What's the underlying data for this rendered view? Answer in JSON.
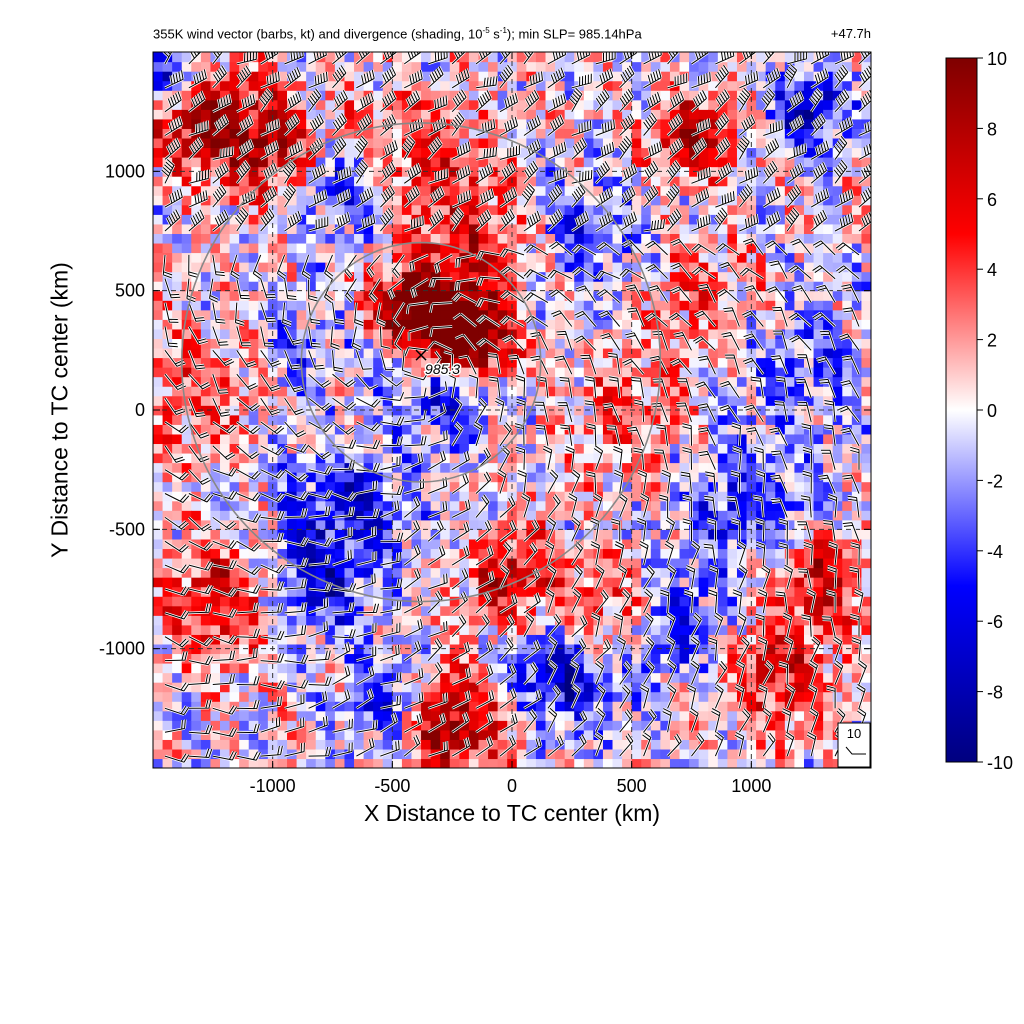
{
  "header": {
    "title_prefix": "355K wind vector (barbs, kt) and divergence (shading, 10",
    "title_exp1": "-5",
    "title_mid": " s",
    "title_exp2": "-1",
    "title_suffix": "); min SLP= 985.14hPa",
    "forecast_hour": "+47.7h"
  },
  "chart_data": {
    "type": "heatmap",
    "xlabel": "X Distance to TC center (km)",
    "ylabel": "Y Distance to TC center (km)",
    "xlim": [
      -1500,
      1500
    ],
    "ylim": [
      -1500,
      1500
    ],
    "x_ticks": [
      -1000,
      -500,
      0,
      500,
      1000
    ],
    "y_ticks": [
      -1000,
      -500,
      0,
      500,
      1000
    ],
    "x_tick_labels": [
      "-1000",
      "-500",
      "0",
      "500",
      "1000"
    ],
    "y_tick_labels": [
      "-1000",
      "-500",
      "0",
      "500",
      "1000"
    ],
    "grid": true,
    "grid_style": "dashed",
    "colorbar": {
      "min": -10,
      "max": 10,
      "ticks": [
        10,
        8,
        6,
        4,
        2,
        0,
        -2,
        -4,
        -6,
        -8,
        -10
      ],
      "tick_labels": [
        "10",
        "8",
        "6",
        "4",
        "2",
        "0",
        "-2",
        "-4",
        "-6",
        "-8",
        "-10"
      ],
      "colormap": [
        "#00007f",
        "#0000ff",
        "#ffffff",
        "#ff0000",
        "#7f0000"
      ]
    },
    "center_marker": {
      "x": -380,
      "y": 230,
      "label": "985.3"
    },
    "range_rings_km": [
      500,
      1000
    ],
    "ring_center": {
      "x": -380,
      "y": 200
    },
    "reference_barb": {
      "label": "10"
    },
    "divergence_features": [
      {
        "x": -300,
        "y": 380,
        "value": 10,
        "spread": 180
      },
      {
        "x": -200,
        "y": 300,
        "value": 9,
        "spread": 120
      },
      {
        "x": -450,
        "y": 420,
        "value": 6,
        "spread": 100
      },
      {
        "x": -250,
        "y": 70,
        "value": -8,
        "spread": 120
      },
      {
        "x": -480,
        "y": 230,
        "value": -6,
        "spread": 90
      },
      {
        "x": -1300,
        "y": 1250,
        "value": 9,
        "spread": 160
      },
      {
        "x": -1000,
        "y": 1100,
        "value": 7,
        "spread": 160
      },
      {
        "x": -700,
        "y": 950,
        "value": -6,
        "spread": 140
      },
      {
        "x": -1400,
        "y": 1400,
        "value": -9,
        "spread": 110
      },
      {
        "x": -450,
        "y": 1100,
        "value": 5,
        "spread": 170
      },
      {
        "x": 750,
        "y": 1150,
        "value": 8,
        "spread": 120
      },
      {
        "x": 1250,
        "y": 1250,
        "value": -7,
        "spread": 120
      },
      {
        "x": -150,
        "y": 800,
        "value": 5,
        "spread": 180
      },
      {
        "x": 300,
        "y": 750,
        "value": -4,
        "spread": 180
      },
      {
        "x": -700,
        "y": -400,
        "value": -5,
        "spread": 200
      },
      {
        "x": -1200,
        "y": -800,
        "value": 7,
        "spread": 180
      },
      {
        "x": -850,
        "y": -750,
        "value": -6,
        "spread": 160
      },
      {
        "x": -250,
        "y": -1300,
        "value": 9,
        "spread": 160
      },
      {
        "x": 200,
        "y": -1100,
        "value": -8,
        "spread": 150
      },
      {
        "x": 400,
        "y": -850,
        "value": 6,
        "spread": 150
      },
      {
        "x": 0,
        "y": -700,
        "value": 7,
        "spread": 140
      },
      {
        "x": 650,
        "y": -900,
        "value": -5,
        "spread": 170
      },
      {
        "x": 1100,
        "y": -1100,
        "value": 6,
        "spread": 170
      },
      {
        "x": 1000,
        "y": -400,
        "value": -5,
        "spread": 200
      },
      {
        "x": 500,
        "y": 0,
        "value": 4,
        "spread": 180
      },
      {
        "x": 1200,
        "y": 200,
        "value": -3,
        "spread": 200
      },
      {
        "x": 800,
        "y": 500,
        "value": 3,
        "spread": 180
      },
      {
        "x": -1300,
        "y": 100,
        "value": 4,
        "spread": 200
      },
      {
        "x": -900,
        "y": 250,
        "value": -3,
        "spread": 160
      },
      {
        "x": -500,
        "y": -1200,
        "value": -6,
        "spread": 130
      },
      {
        "x": 1300,
        "y": -700,
        "value": 7,
        "spread": 140
      }
    ]
  }
}
